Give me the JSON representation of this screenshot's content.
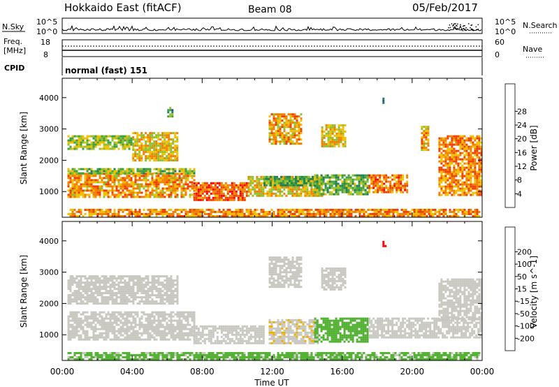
{
  "header": {
    "station": "Hokkaido East (fitACF)",
    "beam": "Beam 08",
    "date": "05/Feb/2017"
  },
  "noise_panel": {
    "left_label": "N.Sky",
    "right_label": "N.Search",
    "left_ticks": [
      "10^5",
      "10^0"
    ],
    "right_ticks": [
      "10^5",
      "10^0"
    ]
  },
  "freq_panel": {
    "label_line1": "Freq.",
    "label_line2": "[MHz]",
    "left_ticks": [
      "18",
      "8"
    ],
    "right_label": "Nave",
    "right_ticks": [
      "60",
      "0"
    ]
  },
  "cpid_panel": {
    "label": "CPID",
    "text": "normal (fast) 151"
  },
  "colors": {
    "power_scale": [
      "#0000ff",
      "#2050a0",
      "#208050",
      "#40a040",
      "#90c030",
      "#f0c000",
      "#f08000",
      "#f04000",
      "#ff0000"
    ],
    "velocity_scale": [
      "#ff0000",
      "#f04000",
      "#f08000",
      "#f0b000",
      "#c8c8c0",
      "#50b030",
      "#40a040",
      "#208050",
      "#2050a0",
      "#0000ff"
    ],
    "ground_scatter": "#c8c8c0"
  },
  "chart_data": [
    {
      "type": "heatmap",
      "name": "power",
      "xlabel": "",
      "ylabel": "Slant Range [km]",
      "x_ticks": [
        "00:00",
        "04:00",
        "08:00",
        "12:00",
        "16:00",
        "20:00",
        "00:00"
      ],
      "xlim": [
        0,
        24
      ],
      "y_ticks": [
        "1000",
        "2000",
        "3000",
        "4000"
      ],
      "ylim": [
        180,
        4620
      ],
      "colorbar_label": "Power [dB]",
      "colorbar_ticks": [
        "4",
        "8",
        "12",
        "16",
        "20",
        "24",
        "28"
      ],
      "colorbar_range": [
        0,
        36
      ],
      "regions": [
        {
          "t0": 0.3,
          "t1": 7.5,
          "r0": 850,
          "r1": 1600,
          "v": 25
        },
        {
          "t0": 0.3,
          "t1": 7.5,
          "r0": 1600,
          "r1": 1750,
          "v": 17
        },
        {
          "t0": 0.3,
          "t1": 4.0,
          "r0": 2350,
          "r1": 2800,
          "v": 18
        },
        {
          "t0": 4.0,
          "t1": 6.6,
          "r0": 2000,
          "r1": 2900,
          "v": 22
        },
        {
          "t0": 6.0,
          "t1": 6.3,
          "r0": 3400,
          "r1": 3700,
          "v": 12
        },
        {
          "t0": 7.5,
          "t1": 10.6,
          "r0": 700,
          "r1": 1300,
          "v": 29
        },
        {
          "t0": 10.6,
          "t1": 14.8,
          "r0": 850,
          "r1": 1500,
          "v": 22
        },
        {
          "t0": 11.5,
          "t1": 14.6,
          "r0": 1200,
          "r1": 1500,
          "v": 14
        },
        {
          "t0": 11.8,
          "t1": 13.6,
          "r0": 2550,
          "r1": 3500,
          "v": 24
        },
        {
          "t0": 14.8,
          "t1": 16.2,
          "r0": 2450,
          "r1": 3150,
          "v": 22
        },
        {
          "t0": 14.4,
          "t1": 17.5,
          "r0": 900,
          "r1": 1550,
          "v": 15
        },
        {
          "t0": 17.5,
          "t1": 19.7,
          "r0": 950,
          "r1": 1550,
          "v": 27
        },
        {
          "t0": 18.3,
          "t1": 18.5,
          "r0": 3800,
          "r1": 4000,
          "v": 6
        },
        {
          "t0": 20.5,
          "t1": 20.9,
          "r0": 2300,
          "r1": 3100,
          "v": 24
        },
        {
          "t0": 21.5,
          "t1": 23.9,
          "r0": 900,
          "r1": 2800,
          "v": 26
        },
        {
          "t0": 0.3,
          "t1": 23.9,
          "r0": 200,
          "r1": 450,
          "v": 26
        }
      ]
    },
    {
      "type": "heatmap",
      "name": "velocity",
      "xlabel": "Time UT",
      "ylabel": "Slant Range [km]",
      "x_ticks": [
        "00:00",
        "04:00",
        "08:00",
        "12:00",
        "16:00",
        "20:00",
        "00:00"
      ],
      "xlim": [
        0,
        24
      ],
      "y_ticks": [
        "1000",
        "2000",
        "3000",
        "4000"
      ],
      "ylim": [
        180,
        4620
      ],
      "colorbar_label": "Velocity [m s^-1]",
      "colorbar_ticks": [
        "-200",
        "-100",
        "-50",
        "-15",
        "15",
        "50",
        "100",
        "200"
      ],
      "colorbar_range": [
        -250,
        250
      ],
      "regions": [
        {
          "t0": 0.3,
          "t1": 7.5,
          "r0": 850,
          "r1": 1750,
          "v": 0
        },
        {
          "t0": 0.3,
          "t1": 6.6,
          "r0": 2000,
          "r1": 2900,
          "v": 0
        },
        {
          "t0": 7.5,
          "t1": 11.5,
          "r0": 700,
          "r1": 1300,
          "v": 0
        },
        {
          "t0": 11.8,
          "t1": 13.6,
          "r0": 2550,
          "r1": 3500,
          "v": 0
        },
        {
          "t0": 14.8,
          "t1": 16.2,
          "r0": 2450,
          "r1": 3150,
          "v": 0
        },
        {
          "t0": 11.8,
          "t1": 14.6,
          "r0": 700,
          "r1": 1500,
          "v": -40
        },
        {
          "t0": 14.4,
          "t1": 17.5,
          "r0": 750,
          "r1": 1550,
          "v": 30
        },
        {
          "t0": 17.5,
          "t1": 23.9,
          "r0": 900,
          "r1": 1550,
          "v": 0
        },
        {
          "t0": 18.3,
          "t1": 18.5,
          "r0": 3800,
          "r1": 4000,
          "v": -220
        },
        {
          "t0": 21.5,
          "t1": 23.9,
          "r0": 1500,
          "r1": 2800,
          "v": 0
        },
        {
          "t0": 0.3,
          "t1": 23.9,
          "r0": 200,
          "r1": 450,
          "v": 25
        }
      ]
    }
  ]
}
